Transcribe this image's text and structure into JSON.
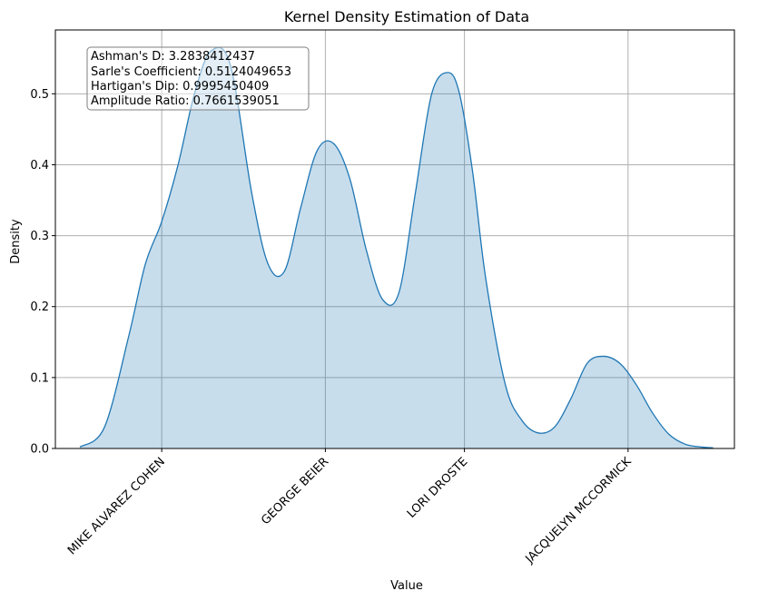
{
  "chart_data": {
    "type": "area",
    "title": "Kernel Density Estimation of Data",
    "xlabel": "Value",
    "ylabel": "Density",
    "ylim": [
      0,
      0.59
    ],
    "y_ticks": [
      0.0,
      0.1,
      0.2,
      0.3,
      0.4,
      0.5
    ],
    "y_tick_labels": [
      "0.0",
      "0.1",
      "0.2",
      "0.3",
      "0.4",
      "0.5"
    ],
    "xlim": [
      -0.65,
      3.5
    ],
    "categories": [
      "MIKE ALVAREZ COHEN",
      "GEORGE BEIER",
      "LORI DROSTE",
      "JACQUELYN MCCORMICK"
    ],
    "category_positions": [
      0,
      1,
      1.85,
      2.85
    ],
    "grid": true,
    "line_color": "#1f77b4",
    "fill_color": "#1f77b4",
    "fill_opacity": 0.25,
    "series": [
      {
        "x": [
          -0.5,
          -0.35,
          -0.2,
          -0.1,
          0.0,
          0.1,
          0.2,
          0.3,
          0.42,
          0.55,
          0.65,
          0.75,
          0.85,
          0.95,
          1.05,
          1.15,
          1.25,
          1.35,
          1.45,
          1.55,
          1.65,
          1.75,
          1.82,
          1.9,
          1.98,
          2.1,
          2.2,
          2.3,
          2.4,
          2.5,
          2.6,
          2.7,
          2.8,
          2.9,
          3.0,
          3.1,
          3.2,
          3.3,
          3.37
        ],
        "y": [
          0.002,
          0.03,
          0.16,
          0.26,
          0.32,
          0.4,
          0.5,
          0.56,
          0.54,
          0.36,
          0.26,
          0.25,
          0.34,
          0.42,
          0.43,
          0.38,
          0.28,
          0.21,
          0.22,
          0.36,
          0.5,
          0.53,
          0.5,
          0.39,
          0.24,
          0.09,
          0.04,
          0.022,
          0.03,
          0.07,
          0.12,
          0.13,
          0.12,
          0.09,
          0.05,
          0.02,
          0.006,
          0.002,
          0.001
        ]
      }
    ],
    "stats_box": [
      "Ashman's D: 3.2838412437",
      "Sarle's Coefficient: 0.5124049653",
      "Hartigan's Dip: 0.9995450409",
      "Amplitude Ratio: 0.7661539051"
    ],
    "stats_box_location": "top-left"
  }
}
